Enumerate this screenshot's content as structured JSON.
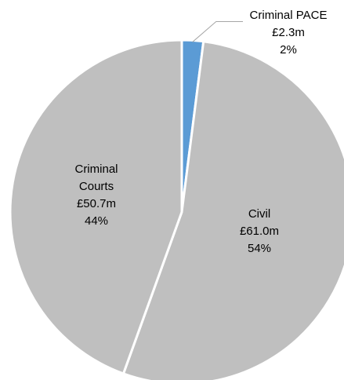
{
  "chart_data": {
    "type": "pie",
    "title": "",
    "start_angle_deg": 0,
    "direction": "clockwise",
    "slices": [
      {
        "name": "Criminal PACE",
        "lines": [
          "Criminal PACE",
          "£2.3m",
          "2%"
        ],
        "value": 2.3,
        "percent": 2,
        "color": "#5b9bd5"
      },
      {
        "name": "Civil",
        "lines": [
          "Civil",
          "£61.0m",
          "54%"
        ],
        "value": 61.0,
        "percent": 54,
        "color": "#bfbfbf"
      },
      {
        "name": "Criminal Courts",
        "lines": [
          "Criminal",
          "Courts",
          "£50.7m",
          "44%"
        ],
        "value": 50.7,
        "percent": 44,
        "color": "#bfbfbf"
      }
    ]
  }
}
